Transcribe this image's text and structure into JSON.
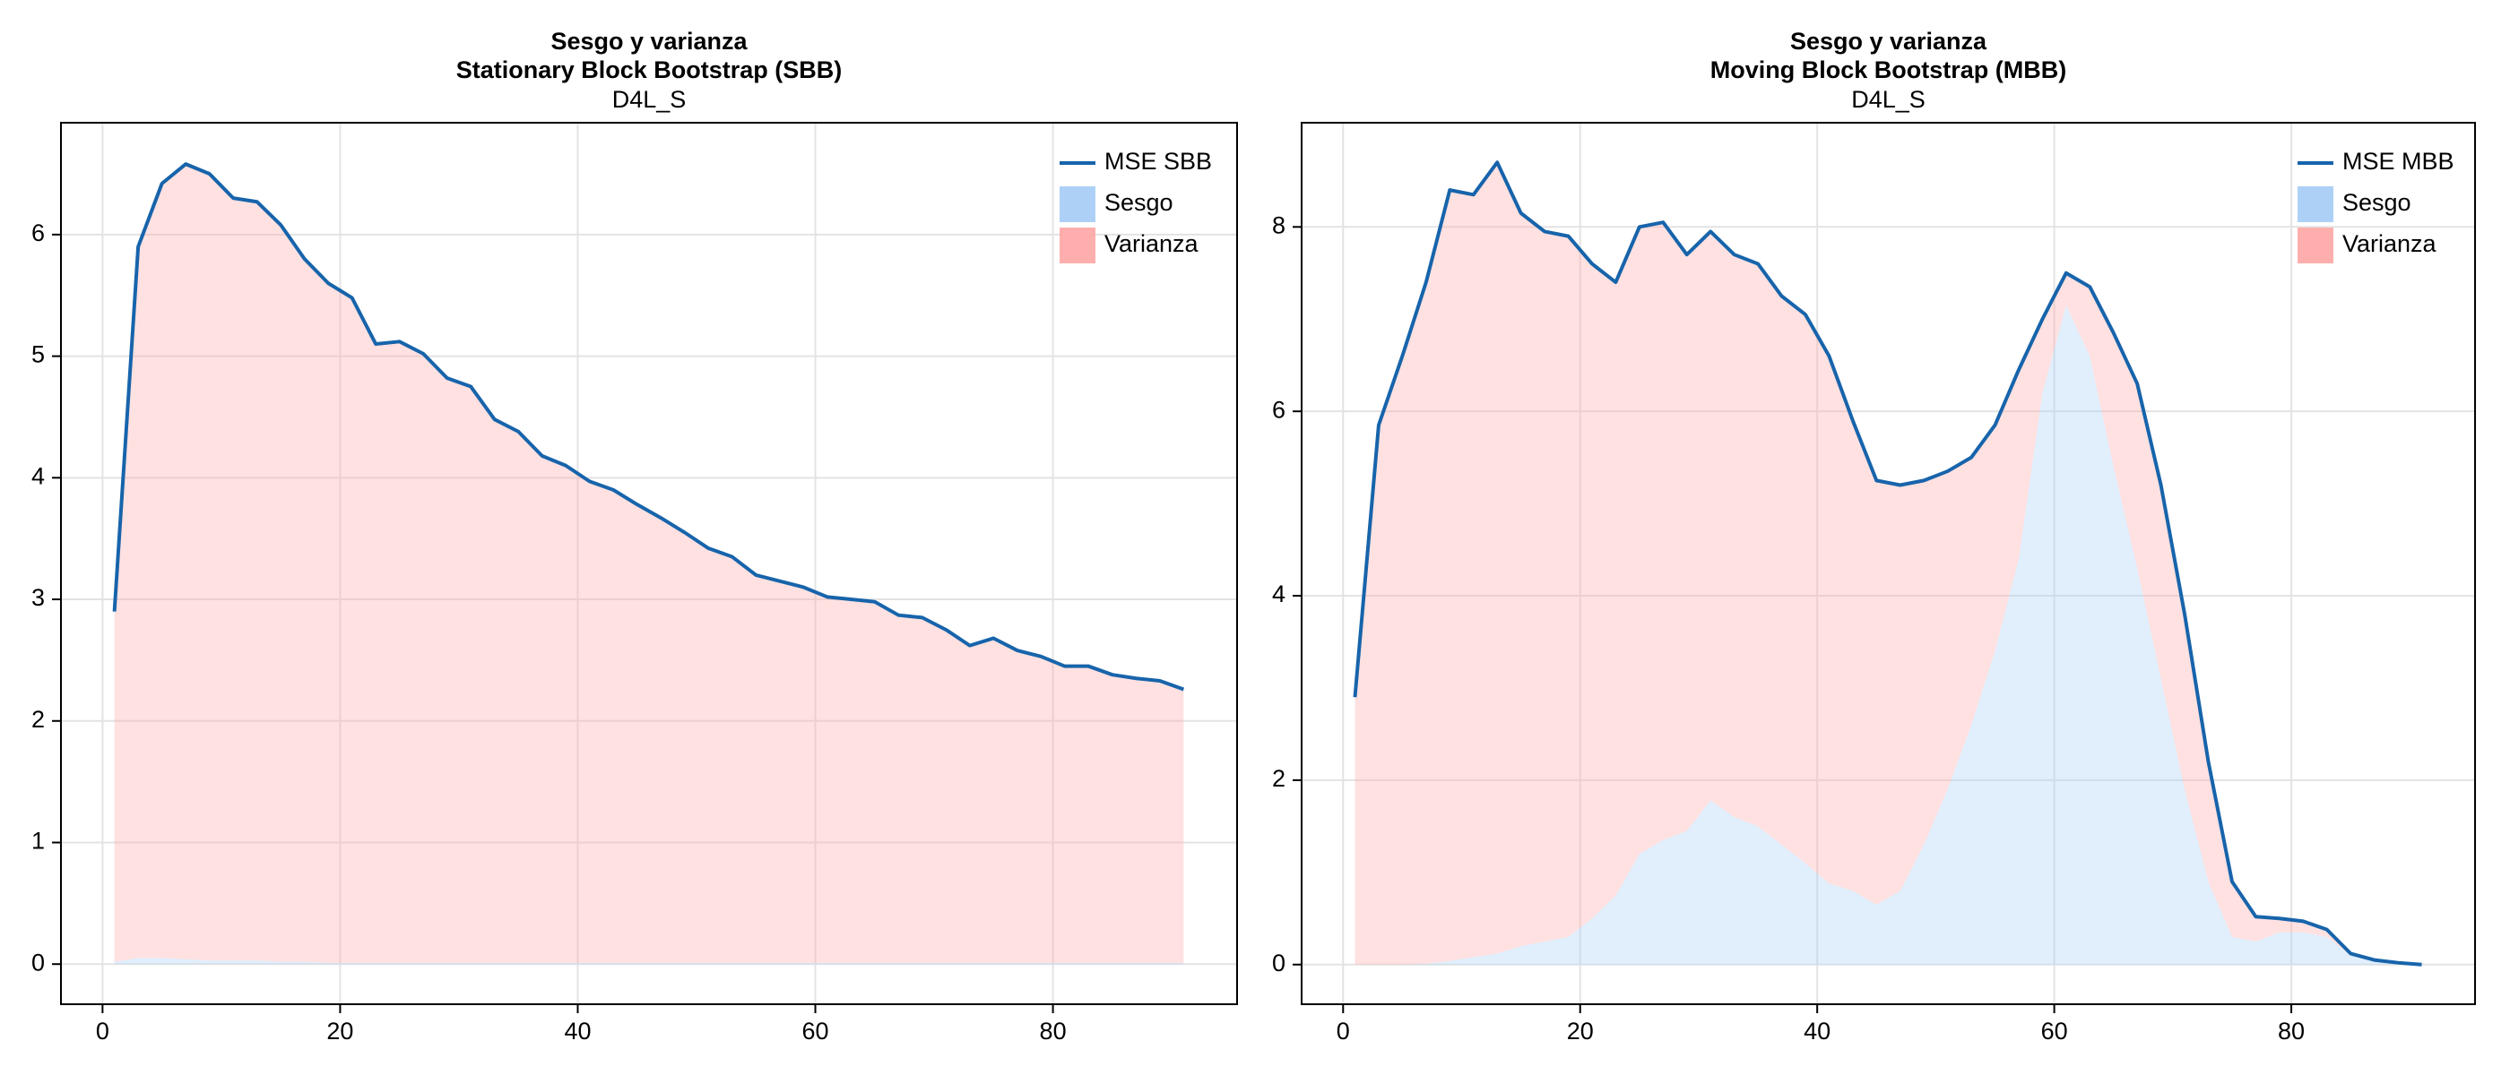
{
  "chart_data": [
    {
      "type": "area",
      "title": "Sesgo y varianza",
      "subtitle": "Stationary Block Bootstrap (SBB)",
      "caption": "D4L_S",
      "x": [
        1,
        3,
        5,
        7,
        9,
        11,
        13,
        15,
        17,
        19,
        21,
        23,
        25,
        27,
        29,
        31,
        33,
        35,
        37,
        39,
        41,
        43,
        45,
        47,
        49,
        51,
        53,
        55,
        57,
        59,
        61,
        63,
        65,
        67,
        69,
        71,
        73,
        75,
        77,
        79,
        81,
        83,
        85,
        87,
        89,
        91
      ],
      "xlim": [
        -3.5,
        95.5
      ],
      "xticks": [
        0,
        20,
        40,
        60,
        80
      ],
      "ylim": [
        -0.33,
        6.92
      ],
      "yticks": [
        0,
        1,
        2,
        3,
        4,
        5,
        6
      ],
      "grid": true,
      "legend": "top-right",
      "series": [
        {
          "name": "MSE SBB",
          "type": "line",
          "color": "#1764ab",
          "values": [
            2.9,
            5.9,
            6.42,
            6.58,
            6.5,
            6.3,
            6.27,
            6.08,
            5.8,
            5.6,
            5.48,
            5.1,
            5.12,
            5.02,
            4.82,
            4.75,
            4.48,
            4.38,
            4.18,
            4.1,
            3.97,
            3.9,
            3.78,
            3.67,
            3.55,
            3.42,
            3.35,
            3.2,
            3.15,
            3.1,
            3.02,
            3.0,
            2.98,
            2.87,
            2.85,
            2.75,
            2.62,
            2.68,
            2.58,
            2.53,
            2.45,
            2.45,
            2.38,
            2.35,
            2.33,
            2.26
          ]
        },
        {
          "name": "Sesgo",
          "type": "area",
          "color": "#a9cff5",
          "values": [
            0.02,
            0.05,
            0.05,
            0.04,
            0.03,
            0.03,
            0.03,
            0.02,
            0.02,
            0.01,
            0.01,
            0.01,
            0.01,
            0.01,
            0.01,
            0.01,
            0.01,
            0.01,
            0.01,
            0.01,
            0.01,
            0.01,
            0.01,
            0.01,
            0.01,
            0.01,
            0.01,
            0.01,
            0.01,
            0.01,
            0.01,
            0.01,
            0.01,
            0.01,
            0.01,
            0.01,
            0.01,
            0.01,
            0.01,
            0.01,
            0.01,
            0.01,
            0.01,
            0.01,
            0.01,
            0.01
          ]
        },
        {
          "name": "Varianza",
          "type": "area",
          "color": "#ffaaaa",
          "values": [
            2.88,
            5.85,
            6.37,
            6.54,
            6.47,
            6.27,
            6.24,
            6.06,
            5.78,
            5.59,
            5.47,
            5.09,
            5.11,
            5.01,
            4.81,
            4.74,
            4.47,
            4.37,
            4.17,
            4.09,
            3.96,
            3.89,
            3.77,
            3.66,
            3.54,
            3.41,
            3.34,
            3.19,
            3.14,
            3.09,
            3.01,
            2.99,
            2.97,
            2.86,
            2.84,
            2.74,
            2.61,
            2.67,
            2.57,
            2.52,
            2.44,
            2.44,
            2.37,
            2.34,
            2.32,
            2.25
          ]
        }
      ]
    },
    {
      "type": "area",
      "title": "Sesgo y varianza",
      "subtitle": "Moving Block Bootstrap (MBB)",
      "caption": "D4L_S",
      "x": [
        1,
        3,
        5,
        7,
        9,
        11,
        13,
        15,
        17,
        19,
        21,
        23,
        25,
        27,
        29,
        31,
        33,
        35,
        37,
        39,
        41,
        43,
        45,
        47,
        49,
        51,
        53,
        55,
        57,
        59,
        61,
        63,
        65,
        67,
        69,
        71,
        73,
        75,
        77,
        79,
        81,
        83,
        85,
        87,
        89,
        91
      ],
      "xlim": [
        -3.5,
        95.5
      ],
      "xticks": [
        0,
        20,
        40,
        60,
        80
      ],
      "ylim": [
        -0.43,
        9.13
      ],
      "yticks": [
        0,
        2,
        4,
        6,
        8
      ],
      "grid": true,
      "legend": "top-right",
      "series": [
        {
          "name": "MSE MBB",
          "type": "line",
          "color": "#1764ab",
          "values": [
            2.9,
            5.85,
            6.6,
            7.4,
            8.4,
            8.35,
            8.7,
            8.15,
            7.95,
            7.9,
            7.6,
            7.4,
            8.0,
            8.05,
            7.7,
            7.95,
            7.7,
            7.6,
            7.25,
            7.05,
            6.6,
            5.9,
            5.25,
            5.2,
            5.25,
            5.35,
            5.5,
            5.85,
            6.45,
            7.0,
            7.5,
            7.35,
            6.85,
            6.3,
            5.2,
            3.8,
            2.2,
            0.9,
            0.52,
            0.5,
            0.47,
            0.38,
            0.12,
            0.05,
            0.02,
            0.0
          ]
        },
        {
          "name": "Sesgo",
          "type": "area",
          "color": "#a9cff5",
          "values": [
            0,
            0,
            0,
            0.01,
            0.04,
            0.08,
            0.12,
            0.2,
            0.25,
            0.3,
            0.5,
            0.75,
            1.2,
            1.35,
            1.45,
            1.78,
            1.6,
            1.5,
            1.3,
            1.1,
            0.88,
            0.8,
            0.65,
            0.8,
            1.3,
            1.9,
            2.6,
            3.4,
            4.4,
            6.2,
            7.15,
            6.6,
            5.4,
            4.3,
            3.1,
            1.9,
            0.9,
            0.3,
            0.25,
            0.35,
            0.35,
            0.3,
            0.1,
            0.04,
            0.02,
            0.0
          ]
        },
        {
          "name": "Varianza",
          "type": "area",
          "color": "#ffaaaa",
          "values": [
            2.9,
            5.85,
            6.6,
            7.39,
            8.36,
            8.27,
            8.58,
            7.95,
            7.7,
            7.6,
            7.1,
            6.65,
            6.8,
            6.7,
            6.25,
            6.17,
            6.1,
            6.1,
            5.95,
            5.95,
            5.72,
            5.1,
            4.6,
            4.4,
            3.95,
            3.45,
            2.9,
            2.45,
            2.05,
            0.8,
            0.35,
            0.75,
            1.45,
            2.0,
            2.1,
            1.9,
            1.3,
            0.6,
            0.27,
            0.15,
            0.12,
            0.08,
            0.02,
            0.01,
            0,
            0
          ]
        }
      ]
    }
  ]
}
